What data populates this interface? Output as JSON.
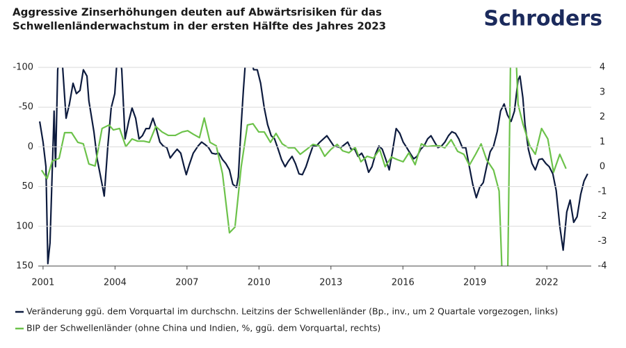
{
  "chart_data": {
    "type": "line",
    "title": [
      "Aggressive Zinserhöhungen deuten auf Abwärtsrisiken für das",
      "Schwellenländerwachstum in der ersten Hälfte des Jahres 2023"
    ],
    "logo": "Schroders",
    "xlim": [
      2000.8,
      2023.85
    ],
    "xticks": [
      2001,
      2004,
      2007,
      2010,
      2013,
      2016,
      2019,
      2022
    ],
    "ylim": [
      -100,
      150
    ],
    "y_inverted": true,
    "yticks": [
      -100,
      -50,
      0,
      50,
      100,
      150
    ],
    "y2lim": [
      -4,
      4
    ],
    "y2ticks": [
      4,
      3,
      2,
      1,
      0,
      -1,
      -2,
      -3,
      -4
    ],
    "grid": true,
    "series": [
      {
        "name": "Veränderung ggü. dem Vorquartal im durchschn. Leitzins der Schwellenländer (Bp., inv., um 2 Quartale vorgezogen, links)",
        "color": "#0d1b3e",
        "axis": "y",
        "x": [
          2000.86,
          2001.0,
          2001.12,
          2001.2,
          2001.29,
          2001.46,
          2001.52,
          2001.61,
          2001.75,
          2001.96,
          2002.1,
          2002.25,
          2002.39,
          2002.54,
          2002.68,
          2002.83,
          2002.91,
          2003.12,
          2003.26,
          2003.46,
          2003.55,
          2003.7,
          2003.84,
          2003.99,
          2004.13,
          2004.28,
          2004.42,
          2004.57,
          2004.71,
          2004.86,
          2005.0,
          2005.14,
          2005.29,
          2005.43,
          2005.58,
          2005.72,
          2005.87,
          2006.01,
          2006.16,
          2006.3,
          2006.45,
          2006.59,
          2006.74,
          2006.88,
          2006.97,
          2007.09,
          2007.26,
          2007.46,
          2007.61,
          2007.75,
          2007.9,
          2008.04,
          2008.19,
          2008.33,
          2008.48,
          2008.62,
          2008.77,
          2008.91,
          2009.06,
          2009.14,
          2009.26,
          2009.35,
          2009.49,
          2009.78,
          2009.93,
          2010.07,
          2010.22,
          2010.36,
          2010.51,
          2010.65,
          2010.8,
          2010.94,
          2011.09,
          2011.23,
          2011.38,
          2011.52,
          2011.67,
          2011.81,
          2011.96,
          2012.1,
          2012.25,
          2012.39,
          2012.54,
          2012.83,
          2013.12,
          2013.41,
          2013.7,
          2013.84,
          2013.99,
          2014.13,
          2014.28,
          2014.42,
          2014.57,
          2014.71,
          2014.86,
          2015.0,
          2015.14,
          2015.29,
          2015.43,
          2015.58,
          2015.72,
          2015.87,
          2016.01,
          2016.16,
          2016.3,
          2016.45,
          2016.59,
          2016.74,
          2016.88,
          2017.03,
          2017.17,
          2017.32,
          2017.46,
          2017.61,
          2017.75,
          2017.9,
          2018.04,
          2018.19,
          2018.33,
          2018.48,
          2018.62,
          2018.77,
          2018.91,
          2019.06,
          2019.2,
          2019.35,
          2019.49,
          2019.64,
          2019.78,
          2019.93,
          2020.07,
          2020.22,
          2020.36,
          2020.51,
          2020.65,
          2020.8,
          2020.88,
          2021.0,
          2021.09,
          2021.23,
          2021.38,
          2021.52,
          2021.67,
          2021.81,
          2021.96,
          2022.1,
          2022.25,
          2022.39,
          2022.54,
          2022.68,
          2022.83,
          2022.97,
          2023.12,
          2023.26,
          2023.41,
          2023.55,
          2023.7
        ],
        "values": [
          -32,
          -6,
          25,
          147,
          121,
          -45,
          25,
          -97,
          -130,
          -36,
          -54,
          -80,
          -67,
          -71,
          -97,
          -89,
          -58,
          -19,
          16,
          47,
          62,
          -1,
          -49,
          -67,
          -130,
          -97,
          -10,
          -32,
          -49,
          -36,
          -10,
          -14,
          -23,
          -23,
          -36,
          -23,
          -6,
          -1,
          1,
          14,
          8,
          3,
          8,
          25,
          35,
          23,
          8,
          -1,
          -6,
          -3,
          1,
          8,
          9,
          8,
          16,
          21,
          29,
          47,
          51,
          38,
          -28,
          -71,
          -130,
          -97,
          -97,
          -80,
          -49,
          -28,
          -14,
          -10,
          3,
          16,
          25,
          18,
          12,
          21,
          34,
          35,
          25,
          12,
          -1,
          -1,
          -6,
          -14,
          -1,
          1,
          -6,
          3,
          3,
          12,
          8,
          16,
          32,
          25,
          9,
          -1,
          3,
          16,
          29,
          3,
          -23,
          -17,
          -6,
          1,
          8,
          15,
          12,
          3,
          -1,
          -10,
          -14,
          -6,
          1,
          -1,
          -6,
          -14,
          -19,
          -17,
          -10,
          1,
          1,
          25,
          47,
          64,
          51,
          45,
          25,
          6,
          -1,
          -19,
          -45,
          -54,
          -40,
          -32,
          -45,
          -84,
          -89,
          -62,
          -28,
          3,
          21,
          29,
          16,
          15,
          21,
          25,
          34,
          55,
          100,
          130,
          82,
          67,
          95,
          88,
          60,
          43,
          34
        ]
      },
      {
        "name": "BIP der Schwellenländer (ohne China und Indien, %, ggü. dem Vorquartal, rechts)",
        "color": "#6cc24a",
        "axis": "y2",
        "x": [
          2000.94,
          2001.17,
          2001.38,
          2001.67,
          2001.9,
          2002.19,
          2002.45,
          2002.68,
          2002.91,
          2003.17,
          2003.46,
          2003.75,
          2003.93,
          2004.19,
          2004.45,
          2004.71,
          2004.94,
          2005.2,
          2005.43,
          2005.7,
          2005.96,
          2006.22,
          2006.51,
          2006.8,
          2007.03,
          2007.26,
          2007.52,
          2007.72,
          2007.96,
          2008.22,
          2008.48,
          2008.77,
          2009.0,
          2009.26,
          2009.52,
          2009.75,
          2009.99,
          2010.22,
          2010.48,
          2010.71,
          2010.97,
          2011.23,
          2011.49,
          2011.72,
          2011.99,
          2012.25,
          2012.51,
          2012.74,
          2013.0,
          2013.26,
          2013.49,
          2013.75,
          2014.01,
          2014.25,
          2014.51,
          2014.77,
          2015.03,
          2015.26,
          2015.52,
          2015.78,
          2016.01,
          2016.25,
          2016.51,
          2016.77,
          2017.0,
          2017.26,
          2017.52,
          2017.75,
          2018.01,
          2018.28,
          2018.54,
          2018.77,
          2019.03,
          2019.26,
          2019.49,
          2019.78,
          2020.01,
          2020.16,
          2020.36,
          2020.51,
          2020.65,
          2020.8,
          2021.0,
          2021.29,
          2021.52,
          2021.78,
          2022.04,
          2022.28,
          2022.54,
          2022.8
        ],
        "values": [
          -0.14,
          -0.48,
          0.22,
          0.34,
          1.37,
          1.37,
          0.98,
          0.92,
          0.11,
          0.03,
          1.54,
          1.68,
          1.48,
          1.54,
          0.81,
          1.12,
          1.03,
          1.03,
          0.98,
          1.62,
          1.4,
          1.26,
          1.26,
          1.4,
          1.45,
          1.31,
          1.17,
          1.96,
          0.98,
          0.84,
          -0.28,
          -2.66,
          -2.43,
          0,
          1.68,
          1.73,
          1.4,
          1.4,
          0.98,
          1.34,
          0.92,
          0.76,
          0.76,
          0.5,
          0.7,
          0.9,
          0.84,
          0.42,
          0.7,
          0.9,
          0.64,
          0.56,
          0.78,
          0.2,
          0.42,
          0.34,
          0.7,
          0,
          0.39,
          0.28,
          0.2,
          0.56,
          0.08,
          0.92,
          0.81,
          0.84,
          0.84,
          0.76,
          1.09,
          0.62,
          0.5,
          0.06,
          0.5,
          0.92,
          0.28,
          -0.14,
          -0.98,
          -5,
          -5,
          6,
          6,
          2.52,
          1.73,
          0.84,
          0.5,
          1.54,
          1.12,
          -0.22,
          0.5,
          -0.08
        ]
      }
    ]
  }
}
